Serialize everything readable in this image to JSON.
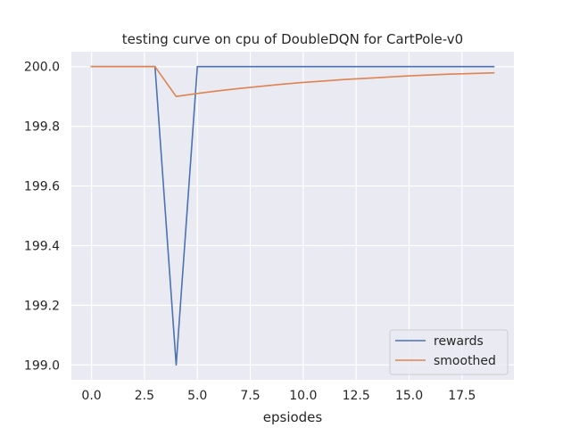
{
  "chart_data": {
    "type": "line",
    "title": "testing curve on cpu of DoubleDQN for CartPole-v0",
    "xlabel": "epsiodes",
    "ylabel": "",
    "xlim": [
      -0.95,
      19.95
    ],
    "ylim": [
      198.95,
      200.05
    ],
    "xticks": [
      0.0,
      2.5,
      5.0,
      7.5,
      10.0,
      12.5,
      15.0,
      17.5
    ],
    "xtick_labels": [
      "0.0",
      "2.5",
      "5.0",
      "7.5",
      "10.0",
      "12.5",
      "15.0",
      "17.5"
    ],
    "yticks": [
      199.0,
      199.2,
      199.4,
      199.6,
      199.8,
      200.0
    ],
    "ytick_labels": [
      "199.0",
      "199.2",
      "199.4",
      "199.6",
      "199.8",
      "200.0"
    ],
    "grid": true,
    "legend_position": "lower-right",
    "x": [
      0,
      1,
      2,
      3,
      4,
      5,
      6,
      7,
      8,
      9,
      10,
      11,
      12,
      13,
      14,
      15,
      16,
      17,
      18,
      19
    ],
    "series": [
      {
        "name": "rewards",
        "color": "#4c72b0",
        "values": [
          200,
          200,
          200,
          200,
          199,
          200,
          200,
          200,
          200,
          200,
          200,
          200,
          200,
          200,
          200,
          200,
          200,
          200,
          200,
          200
        ]
      },
      {
        "name": "smoothed",
        "color": "#dd8452",
        "values": [
          200,
          200,
          200,
          200,
          199.9,
          199.91,
          199.919,
          199.927,
          199.934,
          199.941,
          199.947,
          199.952,
          199.957,
          199.961,
          199.965,
          199.969,
          199.972,
          199.975,
          199.977,
          199.979
        ]
      }
    ]
  }
}
